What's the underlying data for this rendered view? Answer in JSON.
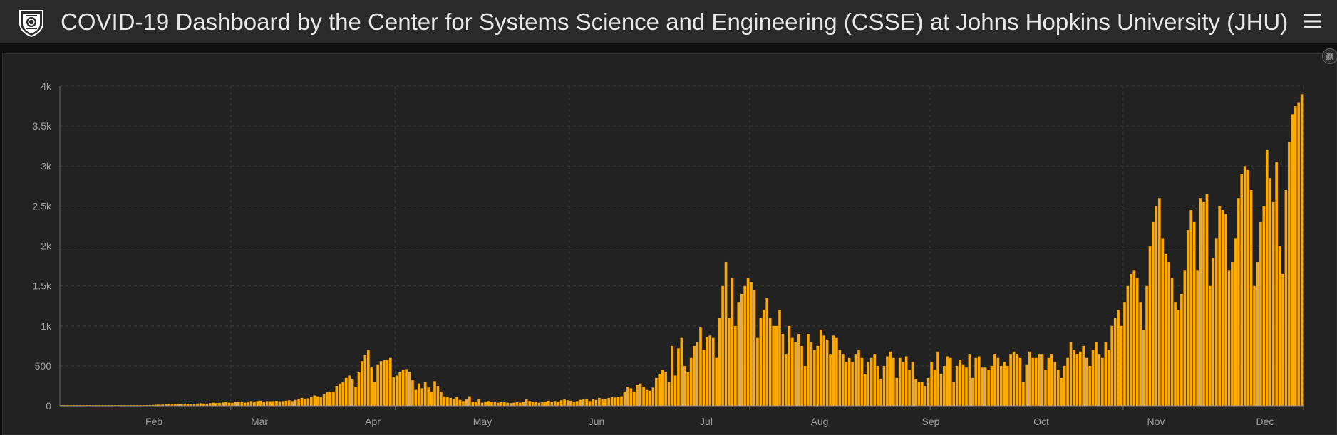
{
  "header": {
    "title": "COVID-19 Dashboard by the Center for Systems Science and Engineering (CSSE) at Johns Hopkins University (JHU)",
    "logo_icon": "jhu-shield-icon",
    "menu_icon": "hamburger-menu-icon"
  },
  "panel": {
    "toggle_icon": "collapse-icon"
  },
  "colors": {
    "background": "#0f0f0f",
    "header_bg": "#2a2a2a",
    "panel_bg": "#222222",
    "bar": "#ffaa00",
    "grid": "#3a3a3a",
    "axis_text": "#a0a0a0"
  },
  "chart_data": {
    "type": "bar",
    "title": "",
    "xlabel": "",
    "ylabel": "",
    "ylim": [
      0,
      4000
    ],
    "y_ticks": [
      {
        "value": 0,
        "label": "0"
      },
      {
        "value": 500,
        "label": "500"
      },
      {
        "value": 1000,
        "label": "1k"
      },
      {
        "value": 1500,
        "label": "1.5k"
      },
      {
        "value": 2000,
        "label": "2k"
      },
      {
        "value": 2500,
        "label": "2.5k"
      },
      {
        "value": 3000,
        "label": "3k"
      },
      {
        "value": 3500,
        "label": "3.5k"
      },
      {
        "value": 4000,
        "label": "4k"
      }
    ],
    "x_ticks": [
      "Feb",
      "Mar",
      "Apr",
      "May",
      "Jun",
      "Jul",
      "Aug",
      "Sep",
      "Oct",
      "Nov",
      "Dec"
    ],
    "grid": true,
    "legend": "none",
    "values": [
      0,
      0,
      0,
      0,
      0,
      0,
      0,
      0,
      0,
      0,
      0,
      0,
      0,
      0,
      0,
      0,
      0,
      0,
      0,
      0,
      0,
      0,
      0,
      0,
      5,
      7,
      8,
      9,
      10,
      12,
      14,
      15,
      16,
      18,
      20,
      18,
      20,
      22,
      25,
      28,
      26,
      26,
      24,
      30,
      32,
      30,
      28,
      35,
      40,
      35,
      38,
      42,
      45,
      40,
      38,
      50,
      55,
      45,
      40,
      55,
      60,
      55,
      60,
      65,
      55,
      60,
      58,
      60,
      62,
      58,
      60,
      65,
      70,
      60,
      75,
      80,
      100,
      90,
      95,
      110,
      130,
      120,
      110,
      150,
      170,
      180,
      180,
      250,
      280,
      300,
      350,
      380,
      330,
      240,
      420,
      560,
      640,
      700,
      480,
      300,
      520,
      560,
      570,
      580,
      600,
      360,
      380,
      420,
      450,
      460,
      420,
      320,
      200,
      280,
      220,
      300,
      230,
      180,
      310,
      250,
      180,
      120,
      110,
      100,
      90,
      110,
      75,
      60,
      80,
      120,
      50,
      55,
      90,
      40,
      55,
      60,
      50,
      45,
      40,
      45,
      45,
      40,
      35,
      40,
      45,
      40,
      50,
      80,
      60,
      50,
      55,
      40,
      45,
      55,
      65,
      50,
      60,
      55,
      70,
      80,
      70,
      65,
      45,
      60,
      75,
      80,
      90,
      60,
      85,
      75,
      100,
      80,
      85,
      100,
      110,
      105,
      110,
      120,
      180,
      240,
      220,
      180,
      260,
      280,
      240,
      200,
      190,
      230,
      350,
      400,
      450,
      420,
      300,
      750,
      380,
      720,
      850,
      500,
      420,
      600,
      750,
      800,
      980,
      700,
      860,
      880,
      850,
      600,
      1100,
      1500,
      1800,
      1100,
      1600,
      1000,
      1300,
      1400,
      1500,
      1600,
      1550,
      1450,
      850,
      1100,
      1200,
      1350,
      1100,
      1000,
      1000,
      1200,
      900,
      650,
      1000,
      850,
      800,
      900,
      750,
      500,
      900,
      800,
      700,
      750,
      950,
      880,
      830,
      650,
      880,
      850,
      700,
      650,
      550,
      600,
      550,
      650,
      700,
      600,
      400,
      550,
      600,
      650,
      500,
      330,
      500,
      620,
      680,
      600,
      350,
      600,
      550,
      620,
      450,
      550,
      340,
      300,
      300,
      250,
      350,
      550,
      450,
      680,
      400,
      500,
      620,
      600,
      300,
      500,
      580,
      520,
      480,
      650,
      350,
      600,
      620,
      480,
      480,
      450,
      500,
      650,
      600,
      500,
      550,
      500,
      650,
      680,
      650,
      600,
      300,
      520,
      680,
      600,
      600,
      650,
      650,
      450,
      600,
      650,
      550,
      450,
      350,
      500,
      600,
      800,
      700,
      650,
      680,
      750,
      600,
      500,
      700,
      800,
      650,
      600,
      800,
      700,
      1000,
      1100,
      1200,
      1000,
      1300,
      1500,
      1650,
      1700,
      1600,
      1300,
      950,
      1500,
      2000,
      2300,
      2500,
      2600,
      2100,
      1900,
      1800,
      1600,
      1300,
      1200,
      1400,
      1700,
      2200,
      2450,
      2300,
      1700,
      2600,
      2550,
      2650,
      1500,
      1850,
      2100,
      2500,
      2450,
      2400,
      1700,
      1800,
      2100,
      2600,
      2900,
      3000,
      2950,
      2700,
      1500,
      1800,
      2300,
      2500,
      3200,
      2850,
      2550,
      3050,
      2000,
      1650,
      2700,
      3300,
      3650,
      3750,
      3800,
      3900
    ]
  }
}
